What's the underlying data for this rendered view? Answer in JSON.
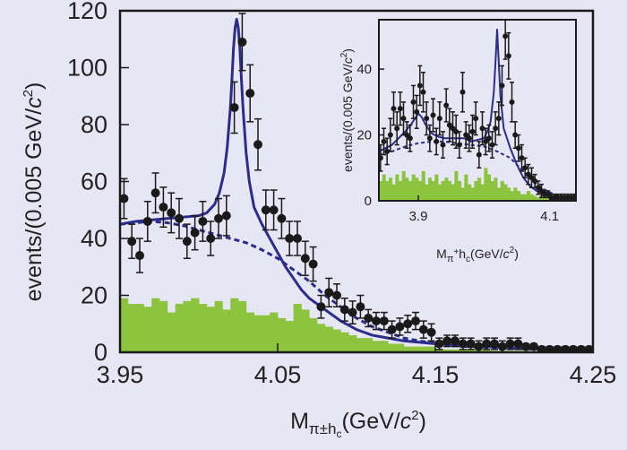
{
  "chart_data": [
    {
      "type": "scatter",
      "xlabel": "M_{π±h_c}(GeV/c²)",
      "ylabel": "events/(0.005 GeV/c²)",
      "xlim": [
        3.95,
        4.25
      ],
      "ylim": [
        0,
        120
      ],
      "xticks": [
        "3.95",
        "4.05",
        "4.15",
        "4.25"
      ],
      "yticks": [
        "0",
        "20",
        "40",
        "60",
        "80",
        "100",
        "120"
      ],
      "grid": false,
      "legend": "none",
      "colors": {
        "data": "#1a1a1a",
        "fit": "#2b2d8a",
        "background_fit": "#2b2d8a",
        "histogram": "#8cc43f"
      },
      "series": [
        {
          "kind": "data points with error bars",
          "x": [
            3.9525,
            3.9575,
            3.9625,
            3.9675,
            3.9725,
            3.9775,
            3.9825,
            3.9875,
            3.9925,
            3.9975,
            4.0025,
            4.0075,
            4.0125,
            4.0175,
            4.0225,
            4.0275,
            4.0325,
            4.0375,
            4.0425,
            4.0475,
            4.0525,
            4.0575,
            4.0625,
            4.0675,
            4.0725,
            4.0775,
            4.0825,
            4.0875,
            4.0925,
            4.0975,
            4.1025,
            4.1075,
            4.1125,
            4.1175,
            4.1225,
            4.1275,
            4.1325,
            4.1375,
            4.1425,
            4.1475,
            4.1525,
            4.1575,
            4.1625,
            4.1675,
            4.1725,
            4.1775,
            4.1825,
            4.1875,
            4.1925,
            4.1975,
            4.2025,
            4.2075,
            4.2125,
            4.2175,
            4.2225,
            4.2275,
            4.2325,
            4.2375,
            4.2425,
            4.2475
          ],
          "y": [
            54,
            39,
            34,
            46,
            56,
            51,
            49,
            47,
            39,
            42,
            46,
            40,
            47,
            48,
            86,
            109,
            91,
            73,
            50,
            50,
            47,
            40,
            40,
            33,
            31,
            16,
            21,
            20,
            15,
            14,
            16,
            12,
            11,
            11,
            8,
            9,
            10,
            11,
            8,
            7,
            3,
            4,
            4,
            3,
            3,
            2,
            3,
            3,
            2,
            3,
            3,
            2,
            2,
            1,
            1,
            1,
            1,
            1,
            1,
            1
          ],
          "err": [
            7,
            6,
            6,
            7,
            7,
            7,
            7,
            7,
            6,
            6,
            7,
            6,
            7,
            7,
            9,
            10,
            10,
            9,
            7,
            7,
            7,
            6,
            6,
            6,
            6,
            4,
            5,
            4,
            4,
            4,
            4,
            3,
            3,
            3,
            3,
            3,
            3,
            3,
            3,
            3,
            2,
            2,
            2,
            2,
            2,
            2,
            2,
            2,
            2,
            2,
            2,
            1,
            1,
            1,
            1,
            1,
            1,
            1,
            1,
            1
          ]
        },
        {
          "kind": "total fit (solid curve)",
          "x": [
            3.95,
            3.96,
            3.97,
            3.98,
            3.99,
            4.0,
            4.005,
            4.01,
            4.013,
            4.016,
            4.018,
            4.02,
            4.021,
            4.022,
            4.023,
            4.024,
            4.025,
            4.026,
            4.027,
            4.028,
            4.03,
            4.032,
            4.035,
            4.04,
            4.045,
            4.05,
            4.055,
            4.06,
            4.065,
            4.07,
            4.08,
            4.09,
            4.1,
            4.11,
            4.12,
            4.13,
            4.14,
            4.15,
            4.16,
            4.17,
            4.18,
            4.19,
            4.2,
            4.21,
            4.22,
            4.23,
            4.24,
            4.25
          ],
          "y": [
            45,
            46,
            46.5,
            47,
            47.5,
            48,
            49,
            52,
            56,
            63,
            72,
            86,
            96,
            107,
            114,
            117,
            114,
            107,
            96,
            86,
            70,
            60,
            51,
            45,
            40,
            35,
            30,
            26,
            22,
            19,
            15,
            11,
            8,
            6,
            5,
            4,
            3.5,
            3,
            2.5,
            2,
            2,
            1.8,
            1.5,
            1.3,
            1.2,
            1,
            1,
            1
          ]
        },
        {
          "kind": "background fit (dashed curve)",
          "x": [
            3.95,
            3.96,
            3.97,
            3.98,
            3.99,
            4.0,
            4.01,
            4.02,
            4.03,
            4.04,
            4.05,
            4.06,
            4.07,
            4.08,
            4.09,
            4.1,
            4.11,
            4.12,
            4.13,
            4.14,
            4.15,
            4.16,
            4.17,
            4.18,
            4.19,
            4.2,
            4.21,
            4.22,
            4.23,
            4.24,
            4.25
          ],
          "y": [
            45,
            45.5,
            46,
            45.5,
            44.5,
            43,
            41.5,
            40,
            38.5,
            36,
            33,
            29,
            25,
            20,
            16,
            12,
            9,
            7,
            5,
            4,
            3.2,
            2.6,
            2.1,
            1.8,
            1.6,
            1.4,
            1.2,
            1.1,
            1,
            1,
            1
          ]
        },
        {
          "kind": "background histogram (filled bars, width 0.005)",
          "x": [
            3.95,
            3.955,
            3.96,
            3.965,
            3.97,
            3.975,
            3.98,
            3.985,
            3.99,
            3.995,
            4.0,
            4.005,
            4.01,
            4.015,
            4.02,
            4.025,
            4.03,
            4.035,
            4.04,
            4.045,
            4.05,
            4.055,
            4.06,
            4.065,
            4.07,
            4.075,
            4.08,
            4.085,
            4.09,
            4.095,
            4.1,
            4.105,
            4.11,
            4.115,
            4.12,
            4.125,
            4.13,
            4.135,
            4.14,
            4.145,
            4.15,
            4.155,
            4.16,
            4.165,
            4.17,
            4.175,
            4.18,
            4.185,
            4.19,
            4.195,
            4.2,
            4.205,
            4.21,
            4.215,
            4.22,
            4.225,
            4.23,
            4.235,
            4.24,
            4.245
          ],
          "y": [
            19,
            17,
            17,
            16,
            19,
            18,
            14,
            17,
            18,
            19,
            17,
            16,
            18,
            15,
            19,
            18,
            14,
            13,
            13,
            14,
            12,
            11,
            17,
            15,
            12,
            10,
            9,
            8,
            7,
            6,
            5,
            5,
            4,
            4,
            3,
            3,
            2,
            2,
            2,
            2,
            1,
            1,
            1,
            1,
            1,
            1,
            1,
            0.5,
            0.5,
            0.5,
            0.5,
            0.5,
            0.3,
            0.3,
            0.3,
            0.3,
            0.2,
            0.2,
            0.2,
            0.2
          ]
        }
      ]
    },
    {
      "type": "scatter",
      "inset": true,
      "xlabel": "M_{π+h_c}(GeV/c²)",
      "ylabel": "events/(0.005 GeV/c²)",
      "xlim": [
        3.84,
        4.14
      ],
      "ylim": [
        0,
        55
      ],
      "xticks": [
        "3.9",
        "4.1"
      ],
      "yticks": [
        "0",
        "20",
        "40"
      ],
      "grid": false,
      "legend": "none",
      "series": [
        {
          "kind": "data points with error bars",
          "x": [
            3.8425,
            3.8475,
            3.8525,
            3.8575,
            3.8625,
            3.8675,
            3.8725,
            3.8775,
            3.8825,
            3.8875,
            3.8925,
            3.8975,
            3.9025,
            3.9075,
            3.9125,
            3.9175,
            3.9225,
            3.9275,
            3.9325,
            3.9375,
            3.9425,
            3.9475,
            3.9525,
            3.9575,
            3.9625,
            3.9675,
            3.9725,
            3.9775,
            3.9825,
            3.9875,
            3.9925,
            3.9975,
            4.0025,
            4.0075,
            4.0125,
            4.0175,
            4.0225,
            4.0275,
            4.0325,
            4.0375,
            4.0425,
            4.0475,
            4.0525,
            4.0575,
            4.0625,
            4.0675,
            4.0725,
            4.0775,
            4.0825,
            4.0875,
            4.0925,
            4.0975,
            4.1025,
            4.1075,
            4.1125,
            4.1175,
            4.1225,
            4.1275,
            4.1325,
            4.1375
          ],
          "y": [
            13,
            18,
            15,
            20,
            28,
            22,
            28,
            25,
            20,
            19,
            30,
            27,
            35,
            33,
            25,
            19,
            26,
            18,
            25,
            17,
            29,
            23,
            22,
            21,
            17,
            33,
            20,
            19,
            21,
            25,
            14,
            22,
            18,
            19,
            17,
            22,
            25,
            35,
            50,
            44,
            30,
            20,
            16,
            13,
            10,
            8,
            7,
            6,
            4,
            3,
            2,
            2,
            1,
            1,
            1,
            1,
            1,
            1,
            1,
            1
          ],
          "err": [
            4,
            4,
            4,
            5,
            5,
            5,
            5,
            5,
            4,
            4,
            5,
            5,
            6,
            6,
            5,
            4,
            5,
            4,
            5,
            4,
            5,
            5,
            5,
            5,
            4,
            6,
            4,
            4,
            5,
            5,
            4,
            5,
            4,
            4,
            4,
            5,
            5,
            6,
            7,
            7,
            6,
            4,
            4,
            4,
            3,
            3,
            3,
            2,
            2,
            2,
            1,
            1,
            1,
            1,
            1,
            1,
            1,
            1,
            1,
            1
          ]
        },
        {
          "kind": "total fit (solid curve)",
          "x": [
            3.84,
            3.85,
            3.86,
            3.87,
            3.88,
            3.89,
            3.895,
            3.9,
            3.905,
            3.91,
            3.92,
            3.93,
            3.94,
            3.95,
            3.96,
            3.97,
            3.98,
            3.99,
            4.0,
            4.005,
            4.01,
            4.015,
            4.018,
            4.02,
            4.022,
            4.025,
            4.03,
            4.04,
            4.05,
            4.06,
            4.07,
            4.08,
            4.09,
            4.1,
            4.11,
            4.12,
            4.13,
            4.14
          ],
          "y": [
            15,
            16,
            17,
            19,
            21,
            23.5,
            25,
            26.5,
            25.5,
            23.5,
            20.5,
            19.5,
            19,
            19,
            19,
            19,
            18,
            18.5,
            19,
            21,
            24,
            33,
            44,
            52,
            44,
            32,
            22,
            16,
            11,
            7,
            4.5,
            3,
            2,
            1.5,
            1,
            1,
            0.8,
            0.8
          ]
        },
        {
          "kind": "background fit (dashed curve)",
          "x": [
            3.84,
            3.86,
            3.88,
            3.9,
            3.92,
            3.94,
            3.96,
            3.98,
            4.0,
            4.02,
            4.04,
            4.06,
            4.08,
            4.1,
            4.12,
            4.14
          ],
          "y": [
            14,
            15,
            16.5,
            17.5,
            18,
            18,
            17.5,
            17,
            16.5,
            15,
            13,
            9,
            5,
            2.5,
            1.2,
            0.8
          ]
        },
        {
          "kind": "background histogram (filled bars, width 0.005)",
          "x": [
            3.84,
            3.845,
            3.85,
            3.855,
            3.86,
            3.865,
            3.87,
            3.875,
            3.88,
            3.885,
            3.89,
            3.895,
            3.9,
            3.905,
            3.91,
            3.915,
            3.92,
            3.925,
            3.93,
            3.935,
            3.94,
            3.945,
            3.95,
            3.955,
            3.96,
            3.965,
            3.97,
            3.975,
            3.98,
            3.985,
            3.99,
            3.995,
            4.0,
            4.005,
            4.01,
            4.015,
            4.02,
            4.025,
            4.03,
            4.035,
            4.04,
            4.045,
            4.05,
            4.055,
            4.06,
            4.065,
            4.07,
            4.075,
            4.08,
            4.085,
            4.09,
            4.095,
            4.1,
            4.105,
            4.11,
            4.115,
            4.12,
            4.125,
            4.13,
            4.135
          ],
          "y": [
            6,
            8,
            6,
            7,
            5,
            8,
            6,
            9,
            7,
            6,
            8,
            7,
            6,
            9,
            5,
            7,
            6,
            8,
            5,
            6,
            7,
            6,
            5,
            9,
            6,
            4,
            8,
            5,
            4,
            6,
            7,
            5,
            10,
            8,
            6,
            7,
            4,
            6,
            5,
            4,
            3,
            4,
            3,
            2,
            2,
            3,
            2,
            1.5,
            1,
            2,
            1,
            1,
            0.8,
            0.8,
            0.5,
            0.5,
            0.5,
            0.5,
            0.5,
            0.5
          ]
        }
      ]
    }
  ]
}
